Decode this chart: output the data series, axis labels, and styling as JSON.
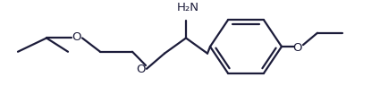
{
  "background_color": "#ffffff",
  "line_color": "#1c1c3a",
  "line_width": 1.6,
  "font_size_nh2": 9.5,
  "font_size_o": 9.5,
  "figsize": [
    4.25,
    1.16
  ],
  "dpi": 100,
  "xlim": [
    0,
    425
  ],
  "ylim": [
    0,
    116
  ]
}
